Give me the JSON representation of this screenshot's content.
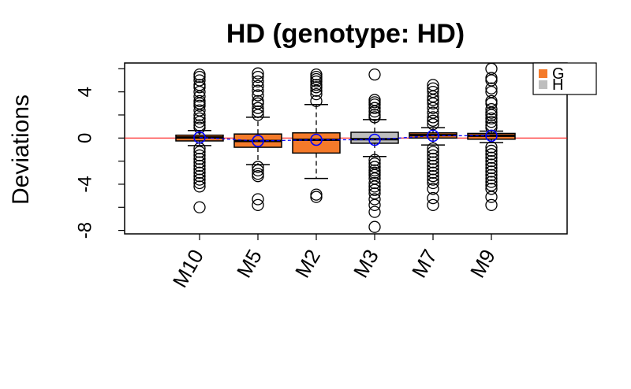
{
  "chart_data": {
    "type": "boxplot",
    "title": "HD (genotype: HD)",
    "ylabel": "Deviations",
    "xlabel": "",
    "ylim": [
      -8.3,
      6.5
    ],
    "yticks": [
      -8,
      -4,
      0,
      4
    ],
    "ytick_labels": [
      "-8",
      "-4",
      "0",
      "4"
    ],
    "reference_line": {
      "y": 0,
      "color": "#ff0000"
    },
    "mean_line_color": "#0000ff",
    "legend": {
      "position": "top-right",
      "entries": [
        {
          "label": "G",
          "color": "#f47a2a"
        },
        {
          "label": "H",
          "color": "#bebebe"
        }
      ]
    },
    "boxes": [
      {
        "name": "M10",
        "fill": "#f47a2a",
        "q1": -0.25,
        "median": 0.05,
        "q3": 0.25,
        "whisker_low": -0.65,
        "whisker_high": 0.65,
        "mean": 0.05,
        "outliers": [
          5.5,
          5.3,
          5.0,
          4.6,
          4.4,
          4.0,
          3.6,
          3.2,
          3.0,
          2.8,
          2.4,
          2.0,
          1.7,
          1.4,
          1.1,
          0.9,
          -0.9,
          -1.2,
          -1.5,
          -1.8,
          -2.1,
          -2.4,
          -2.7,
          -3.0,
          -3.3,
          -3.6,
          -3.9,
          -4.2,
          -6.0
        ]
      },
      {
        "name": "M5",
        "fill": "#f47a2a",
        "q1": -0.8,
        "median": -0.25,
        "q3": 0.35,
        "whisker_low": -2.3,
        "whisker_high": 1.8,
        "mean": -0.25,
        "outliers": [
          5.6,
          5.3,
          4.9,
          4.5,
          4.1,
          3.7,
          3.2,
          3.0,
          2.6,
          2.3,
          2.0,
          -2.5,
          -2.8,
          -3.1,
          -3.3,
          -5.3,
          -5.8
        ]
      },
      {
        "name": "M2",
        "fill": "#f47a2a",
        "q1": -1.3,
        "median": -0.15,
        "q3": 0.45,
        "whisker_low": -3.5,
        "whisker_high": 2.9,
        "mean": -0.15,
        "outliers": [
          5.5,
          5.3,
          5.1,
          4.9,
          4.6,
          4.4,
          4.1,
          3.8,
          3.2,
          -4.9,
          -5.1
        ]
      },
      {
        "name": "M3",
        "fill": "#bebebe",
        "q1": -0.45,
        "median": -0.1,
        "q3": 0.5,
        "whisker_low": -1.6,
        "whisker_high": 1.6,
        "mean": -0.15,
        "outliers": [
          5.5,
          3.3,
          3.1,
          2.9,
          2.6,
          2.3,
          2.0,
          1.8,
          -1.9,
          -2.2,
          -2.5,
          -2.8,
          -3.0,
          -3.2,
          -3.5,
          -3.9,
          -4.2,
          -4.5,
          -4.8,
          -5.3,
          -5.8,
          -6.4,
          -7.7
        ]
      },
      {
        "name": "M7",
        "fill": "#f47a2a",
        "q1": 0.0,
        "median": 0.25,
        "q3": 0.45,
        "whisker_low": -0.6,
        "whisker_high": 0.9,
        "mean": 0.2,
        "outliers": [
          4.6,
          4.3,
          4.0,
          3.6,
          3.3,
          3.0,
          2.6,
          2.2,
          1.8,
          1.5,
          1.2,
          -0.9,
          -1.2,
          -1.5,
          -1.8,
          -2.1,
          -2.4,
          -2.7,
          -3.0,
          -3.3,
          -3.6,
          -3.9,
          -4.4,
          -5.2,
          -5.8
        ]
      },
      {
        "name": "M9",
        "fill": "#f47a2a",
        "q1": -0.1,
        "median": 0.2,
        "q3": 0.4,
        "whisker_low": -0.4,
        "whisker_high": 0.6,
        "mean": 0.2,
        "outliers": [
          6.0,
          5.2,
          5.0,
          4.3,
          4.0,
          3.2,
          3.0,
          2.5,
          2.2,
          2.0,
          1.7,
          1.4,
          1.1,
          0.9,
          -0.8,
          -1.1,
          -1.4,
          -1.7,
          -2.0,
          -2.3,
          -2.6,
          -2.9,
          -3.2,
          -3.5,
          -3.8,
          -4.1,
          -4.4,
          -5.1,
          -5.8
        ]
      }
    ]
  }
}
